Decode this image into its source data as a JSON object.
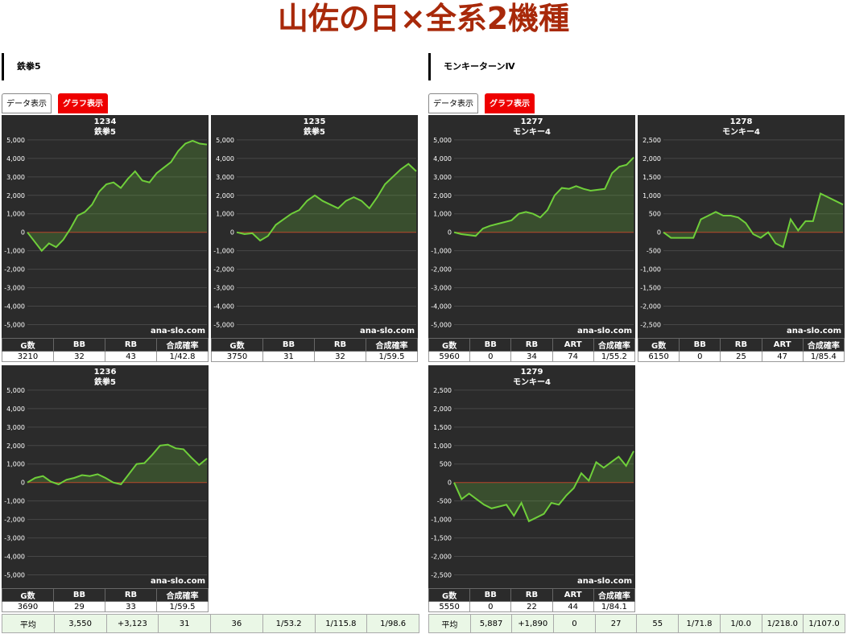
{
  "header": {
    "title": "山佐の日×全系2機種"
  },
  "sections": [
    {
      "name": "鉄拳5",
      "tabs": [
        "データ表示",
        "グラフ表示"
      ],
      "panels": [
        {
          "chart_data": {
            "type": "line",
            "title": "1234",
            "subtitle": "鉄拳5",
            "watermark": "ana-slo.com",
            "color": "#6fcf3a",
            "grid": true,
            "values": [
              0,
              -500,
              -1000,
              -600,
              -800,
              -400,
              200,
              900,
              1100,
              1500,
              2200,
              2600,
              2700,
              2400,
              2900,
              3300,
              2800,
              2700,
              3200,
              3500,
              3800,
              4400,
              4800,
              4950,
              4800,
              4750
            ],
            "ylim": [
              -5500,
              5300
            ],
            "yticks": [
              {
                "value": 5000,
                "label": "5,000"
              },
              {
                "value": 4000,
                "label": "4,000"
              },
              {
                "value": 3000,
                "label": "3,000"
              },
              {
                "value": 2000,
                "label": "2,000"
              },
              {
                "value": 1000,
                "label": "1,000"
              },
              0,
              {
                "value": -1000,
                "label": "-1,000"
              },
              {
                "value": -2000,
                "label": "-2,000"
              },
              {
                "value": -3000,
                "label": "-3,000"
              },
              {
                "value": -4000,
                "label": "-4,000"
              },
              {
                "value": -5000,
                "label": "-5,000"
              }
            ]
          },
          "table": {
            "header": [
              "G数",
              "BB",
              "RB",
              "合成確率"
            ],
            "row": [
              3210,
              32,
              43,
              "1/42.8"
            ]
          }
        },
        {
          "chart_data": {
            "type": "line",
            "title": "1235",
            "subtitle": "鉄拳5",
            "watermark": "ana-slo.com",
            "color": "#6fcf3a",
            "grid": true,
            "values": [
              0,
              -100,
              -50,
              -450,
              -200,
              400,
              700,
              1000,
              1200,
              1700,
              2000,
              1700,
              1500,
              1300,
              1700,
              1900,
              1700,
              1300,
              1900,
              2600,
              3000,
              3400,
              3700,
              3300
            ],
            "ylim": [
              -5500,
              5300
            ],
            "yticks": [
              {
                "value": 5000,
                "label": "5,000"
              },
              {
                "value": 4000,
                "label": "4,000"
              },
              {
                "value": 3000,
                "label": "3,000"
              },
              {
                "value": 2000,
                "label": "2,000"
              },
              {
                "value": 1000,
                "label": "1,000"
              },
              0,
              {
                "value": -1000,
                "label": "-1,000"
              },
              {
                "value": -2000,
                "label": "-2,000"
              },
              {
                "value": -3000,
                "label": "-3,000"
              },
              {
                "value": -4000,
                "label": "-4,000"
              },
              {
                "value": -5000,
                "label": "-5,000"
              }
            ]
          },
          "table": {
            "header": [
              "G数",
              "BB",
              "RB",
              "合成確率"
            ],
            "row": [
              3750,
              31,
              32,
              "1/59.5"
            ]
          }
        },
        {
          "chart_data": {
            "type": "line",
            "title": "1236",
            "subtitle": "鉄拳5",
            "watermark": "ana-slo.com",
            "color": "#6fcf3a",
            "grid": true,
            "values": [
              0,
              250,
              350,
              50,
              -100,
              150,
              250,
              400,
              350,
              450,
              250,
              0,
              -100,
              450,
              1000,
              1050,
              1500,
              2000,
              2050,
              1850,
              1800,
              1350,
              950,
              1300
            ],
            "ylim": [
              -5500,
              5300
            ],
            "yticks": [
              {
                "value": 5000,
                "label": "5,000"
              },
              {
                "value": 4000,
                "label": "4,000"
              },
              {
                "value": 3000,
                "label": "3,000"
              },
              {
                "value": 2000,
                "label": "2,000"
              },
              {
                "value": 1000,
                "label": "1,000"
              },
              0,
              {
                "value": -1000,
                "label": "-1,000"
              },
              {
                "value": -2000,
                "label": "-2,000"
              },
              {
                "value": -3000,
                "label": "-3,000"
              },
              {
                "value": -4000,
                "label": "-4,000"
              },
              {
                "value": -5000,
                "label": "-5,000"
              }
            ]
          },
          "table": {
            "header": [
              "G数",
              "BB",
              "RB",
              "合成確率"
            ],
            "row": [
              3690,
              29,
              33,
              "1/59.5"
            ]
          }
        }
      ],
      "average": [
        "平均",
        "3,550",
        "+3,123",
        "31",
        "36",
        "1/53.2",
        "1/115.8",
        "1/98.6"
      ]
    },
    {
      "name": "モンキーターンⅣ",
      "tabs": [
        "データ表示",
        "グラフ表示"
      ],
      "panels": [
        {
          "chart_data": {
            "type": "line",
            "title": "1277",
            "subtitle": "モンキー4",
            "watermark": "ana-slo.com",
            "color": "#6fcf3a",
            "grid": true,
            "values": [
              0,
              -100,
              -150,
              -200,
              200,
              350,
              450,
              550,
              650,
              1000,
              1100,
              1000,
              800,
              1200,
              2000,
              2400,
              2350,
              2500,
              2350,
              2250,
              2300,
              2350,
              3200,
              3550,
              3650,
              4050
            ],
            "ylim": [
              -5500,
              5300
            ],
            "yticks": [
              {
                "value": 5000,
                "label": "5,000"
              },
              {
                "value": 4000,
                "label": "4,000"
              },
              {
                "value": 3000,
                "label": "3,000"
              },
              {
                "value": 2000,
                "label": "2,000"
              },
              {
                "value": 1000,
                "label": "1,000"
              },
              0,
              {
                "value": -1000,
                "label": "-1,000"
              },
              {
                "value": -2000,
                "label": "-2,000"
              },
              {
                "value": -3000,
                "label": "-3,000"
              },
              {
                "value": -4000,
                "label": "-4,000"
              },
              {
                "value": -5000,
                "label": "-5,000"
              }
            ]
          },
          "table": {
            "header": [
              "G数",
              "BB",
              "RB",
              "ART",
              "合成確率"
            ],
            "row": [
              5960,
              0,
              34,
              74,
              "1/55.2"
            ]
          }
        },
        {
          "chart_data": {
            "type": "line",
            "title": "1278",
            "subtitle": "モンキー4",
            "watermark": "ana-slo.com",
            "color": "#6fcf3a",
            "grid": true,
            "values": [
              0,
              -150,
              -150,
              -150,
              -150,
              350,
              450,
              550,
              450,
              450,
              400,
              250,
              -50,
              -150,
              0,
              -300,
              -400,
              350,
              50,
              300,
              300,
              1050,
              950,
              850,
              750
            ],
            "ylim": [
              -2750,
              2650
            ],
            "yticks": [
              {
                "value": 2500,
                "label": "2,500"
              },
              {
                "value": 2000,
                "label": "2,000"
              },
              {
                "value": 1500,
                "label": "1,500"
              },
              {
                "value": 1000,
                "label": "1,000"
              },
              500,
              0,
              -500,
              {
                "value": -1000,
                "label": "-1,000"
              },
              {
                "value": -1500,
                "label": "-1,500"
              },
              {
                "value": -2000,
                "label": "-2,000"
              },
              {
                "value": -2500,
                "label": "-2,500"
              }
            ]
          },
          "table": {
            "header": [
              "G数",
              "BB",
              "RB",
              "ART",
              "合成確率"
            ],
            "row": [
              6150,
              0,
              25,
              47,
              "1/85.4"
            ]
          }
        },
        {
          "chart_data": {
            "type": "line",
            "title": "1279",
            "subtitle": "モンキー4",
            "watermark": "ana-slo.com",
            "color": "#6fcf3a",
            "grid": true,
            "values": [
              0,
              -450,
              -300,
              -450,
              -600,
              -700,
              -650,
              -600,
              -900,
              -550,
              -1050,
              -950,
              -850,
              -550,
              -600,
              -350,
              -150,
              250,
              50,
              550,
              400,
              550,
              700,
              450,
              850
            ],
            "ylim": [
              -2750,
              2650
            ],
            "yticks": [
              {
                "value": 2500,
                "label": "2,500"
              },
              {
                "value": 2000,
                "label": "2,000"
              },
              {
                "value": 1500,
                "label": "1,500"
              },
              {
                "value": 1000,
                "label": "1,000"
              },
              500,
              0,
              -500,
              {
                "value": -1000,
                "label": "-1,000"
              },
              {
                "value": -1500,
                "label": "-1,500"
              },
              {
                "value": -2000,
                "label": "-2,000"
              },
              {
                "value": -2500,
                "label": "-2,500"
              }
            ]
          },
          "table": {
            "header": [
              "G数",
              "BB",
              "RB",
              "ART",
              "合成確率"
            ],
            "row": [
              5550,
              0,
              22,
              44,
              "1/84.1"
            ]
          }
        }
      ],
      "average": [
        "平均",
        "5,887",
        "+1,890",
        "0",
        "27",
        "55",
        "1/71.8",
        "1/0.0",
        "1/218.0",
        "1/107.0"
      ]
    }
  ]
}
